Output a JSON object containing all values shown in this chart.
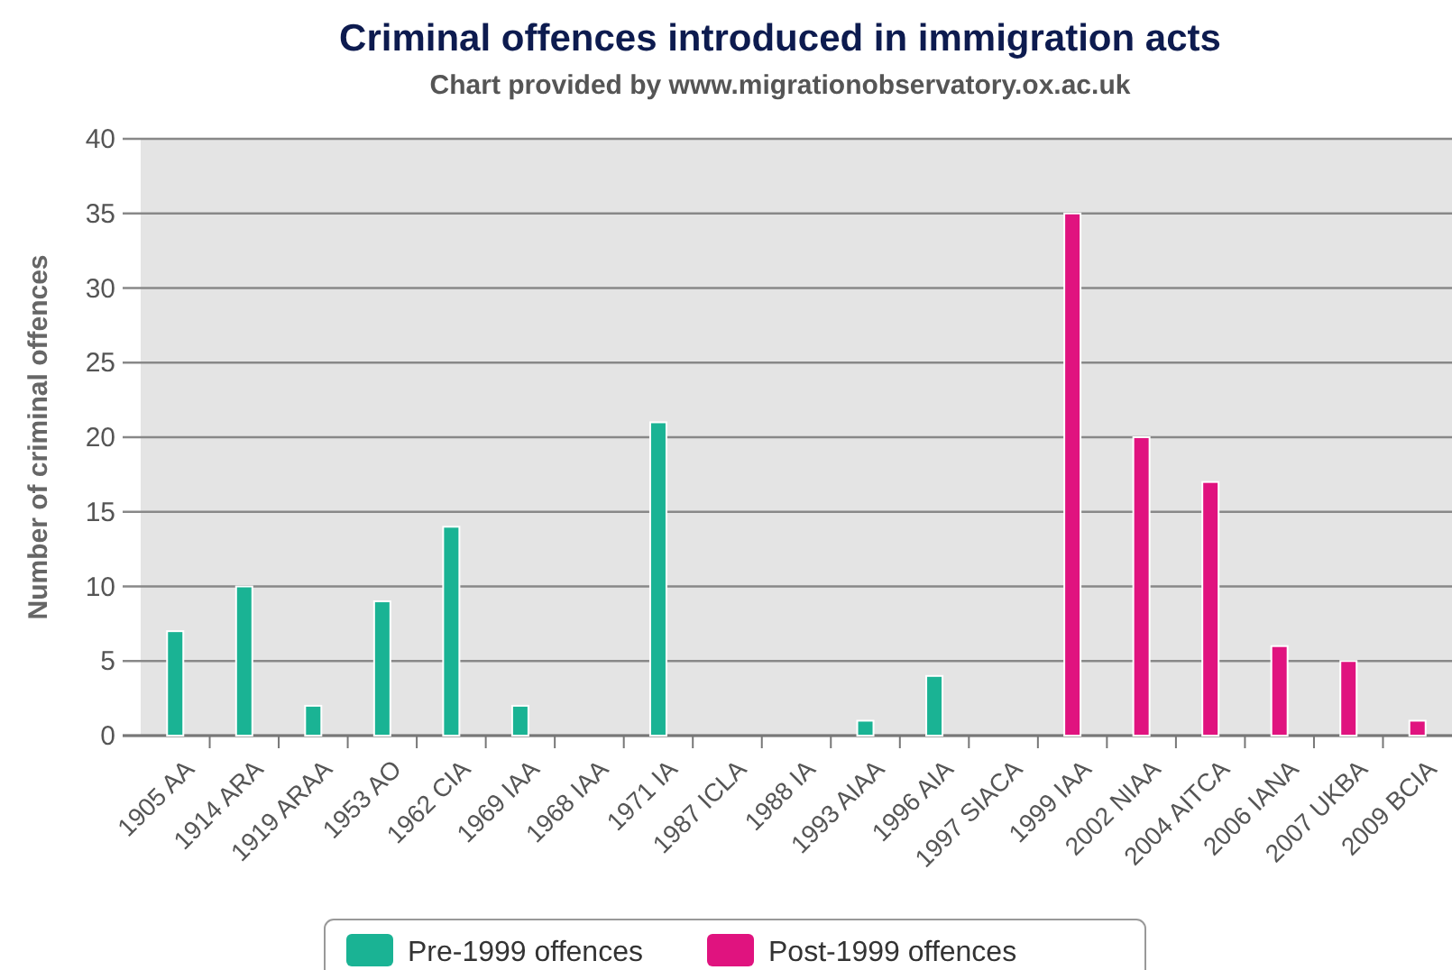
{
  "chart_data": {
    "type": "bar",
    "title": "Criminal offences introduced in immigration acts",
    "subtitle": "Chart provided by www.migrationobservatory.ox.ac.uk",
    "ylabel": "Number of criminal offences",
    "categories": [
      "1905 AA",
      "1914 ARA",
      "1919 ARAA",
      "1953 AO",
      "1962 CIA",
      "1969 IAA",
      "1968 IAA",
      "1971 IA",
      "1987 ICLA",
      "1988 IA",
      "1993 AIAA",
      "1996 AIA",
      "1997 SIACA",
      "1999 IAA",
      "2002 NIAA",
      "2004 AITCA",
      "2006 IANA",
      "2007 UKBA",
      "2009 BCIA"
    ],
    "series": [
      {
        "name": "Pre-1999 offences",
        "color": "#1ab394",
        "values": [
          7,
          10,
          2,
          9,
          14,
          2,
          0,
          21,
          0,
          0,
          1,
          4,
          0,
          null,
          null,
          null,
          null,
          null,
          null
        ]
      },
      {
        "name": "Post-1999 offences",
        "color": "#e0137f",
        "values": [
          null,
          null,
          null,
          null,
          null,
          null,
          null,
          null,
          null,
          null,
          null,
          null,
          null,
          35,
          20,
          17,
          6,
          5,
          1
        ]
      }
    ],
    "ylim": [
      0,
      40
    ],
    "yticks": [
      0,
      5,
      10,
      15,
      20,
      25,
      30,
      35,
      40
    ],
    "grid": "y",
    "legend": "bottom"
  }
}
